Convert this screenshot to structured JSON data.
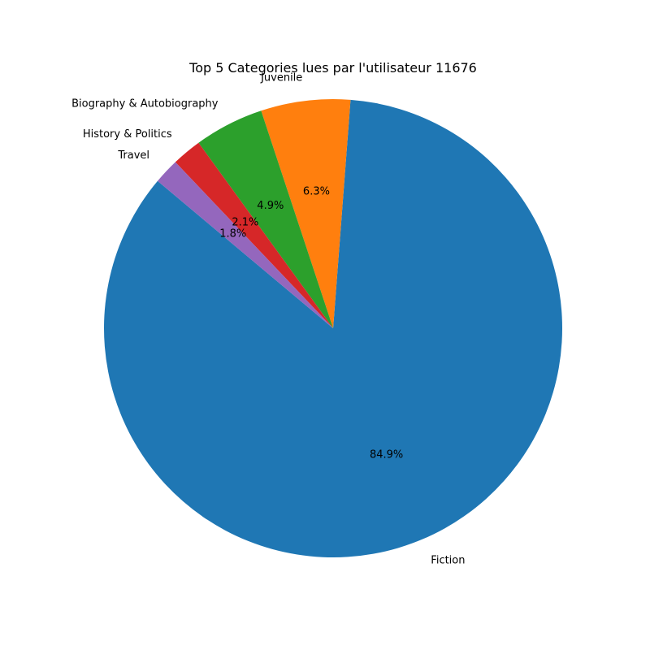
{
  "chart_data": {
    "type": "pie",
    "title": "Top 5 Categories lues par l'utilisateur 11676",
    "start_angle_deg": 140,
    "direction": "counterclockwise",
    "slices": [
      {
        "label": "Fiction",
        "value": 84.9,
        "pct_label": "84.9%",
        "color": "#1f77b4"
      },
      {
        "label": "Juvenile",
        "value": 6.3,
        "pct_label": "6.3%",
        "color": "#ff7f0e"
      },
      {
        "label": "Biography & Autobiography",
        "value": 4.9,
        "pct_label": "4.9%",
        "color": "#2ca02c"
      },
      {
        "label": "History & Politics",
        "value": 2.1,
        "pct_label": "2.1%",
        "color": "#d62728"
      },
      {
        "label": "Travel",
        "value": 1.8,
        "pct_label": "1.8%",
        "color": "#9467bd"
      }
    ]
  }
}
